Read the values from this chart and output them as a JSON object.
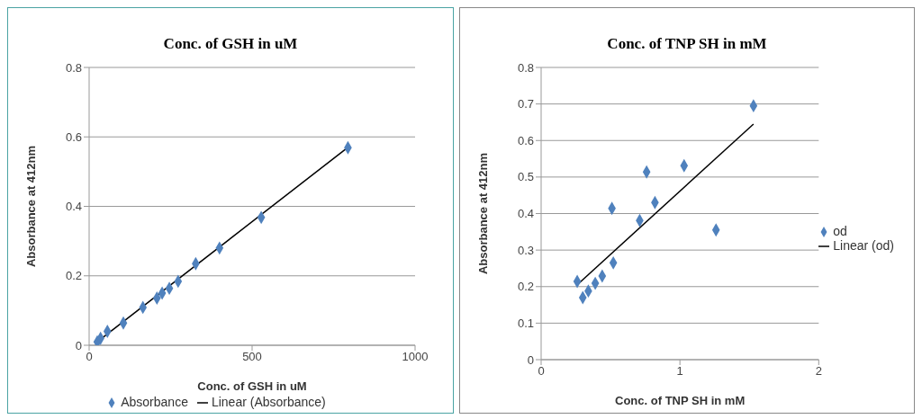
{
  "chart_data": [
    {
      "type": "scatter",
      "title": "Conc. of GSH in uM",
      "xlabel": "Conc. of GSH in uM",
      "ylabel": "Absorbance at 412nm",
      "xlim": [
        0,
        1000
      ],
      "xticks": [
        0,
        500,
        1000
      ],
      "ylim": [
        0,
        0.8
      ],
      "yticks": [
        0,
        0.2,
        0.4,
        0.6,
        0.8
      ],
      "grid": "y",
      "legend": "bottom",
      "series": [
        {
          "name": "Absorbance",
          "marker": "diamond",
          "color": "#4f81bd",
          "x": [
            25,
            35,
            56,
            105,
            165,
            208,
            224,
            246,
            273,
            327,
            400,
            528,
            794
          ],
          "values": [
            0.01,
            0.02,
            0.04,
            0.064,
            0.109,
            0.136,
            0.15,
            0.164,
            0.184,
            0.235,
            0.28,
            0.368,
            0.569
          ]
        },
        {
          "name": "Linear (Absorbance)",
          "type": "line",
          "marker": "none",
          "color": "#000000",
          "x": [
            25,
            794
          ],
          "values": [
            0.01,
            0.57
          ]
        }
      ]
    },
    {
      "type": "scatter",
      "title": "Conc. of TNP SH in mM",
      "xlabel": "Conc. of TNP SH in mM",
      "ylabel": "Absorbance at 412nm",
      "xlim": [
        0,
        2
      ],
      "xticks": [
        0,
        1,
        2
      ],
      "ylim": [
        0,
        0.8
      ],
      "yticks": [
        0,
        0.1,
        0.2,
        0.3,
        0.4,
        0.5,
        0.6,
        0.7,
        0.8
      ],
      "grid": "y",
      "legend": "right",
      "series": [
        {
          "name": "od",
          "marker": "diamond",
          "color": "#4f81bd",
          "x": [
            0.26,
            0.3,
            0.34,
            0.39,
            0.44,
            0.52,
            0.51,
            0.71,
            0.76,
            0.82,
            1.03,
            1.26,
            1.53
          ],
          "values": [
            0.214,
            0.17,
            0.188,
            0.209,
            0.229,
            0.265,
            0.414,
            0.381,
            0.514,
            0.43,
            0.531,
            0.355,
            0.695
          ]
        },
        {
          "name": "Linear (od)",
          "type": "line",
          "marker": "none",
          "color": "#000000",
          "x": [
            0.26,
            1.53
          ],
          "values": [
            0.205,
            0.645
          ]
        }
      ]
    }
  ]
}
